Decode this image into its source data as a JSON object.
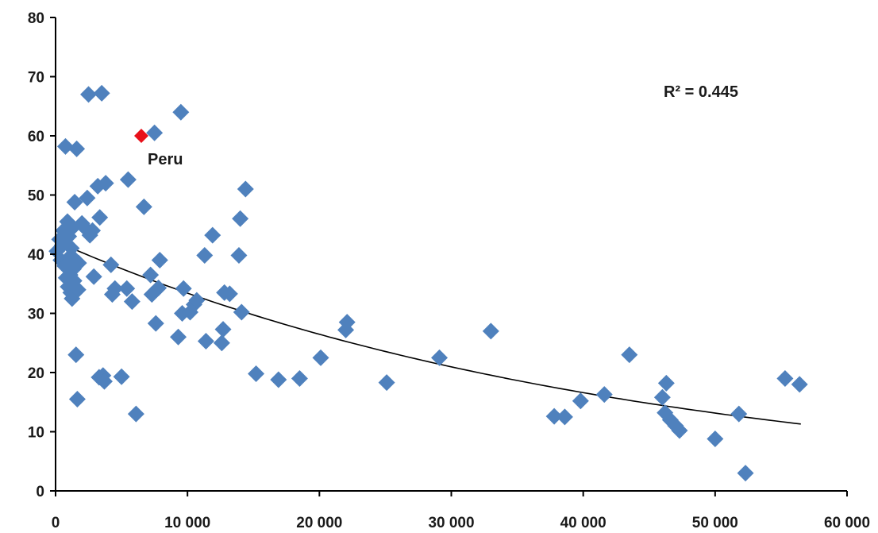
{
  "chart_data": {
    "type": "scatter",
    "title": "",
    "xlabel": "",
    "ylabel": "",
    "xlim": [
      0,
      60000
    ],
    "ylim": [
      0,
      80
    ],
    "x_ticks": [
      0,
      10000,
      20000,
      30000,
      40000,
      50000,
      60000
    ],
    "x_tick_labels": [
      "0",
      "10 000",
      "20 000",
      "30 000",
      "40 000",
      "50 000",
      "60 000"
    ],
    "y_ticks": [
      0,
      10,
      20,
      30,
      40,
      50,
      60,
      70,
      80
    ],
    "y_tick_labels": [
      "0",
      "10",
      "20",
      "30",
      "40",
      "50",
      "60",
      "70",
      "80"
    ],
    "grid": false,
    "legend": "none",
    "colors": {
      "points": "#4f81bd",
      "highlight": "#e8101a",
      "trendline": "#000000"
    },
    "r_squared_label": "R² = 0.445",
    "trendline": {
      "type": "exponential",
      "x": [
        0,
        56500
      ],
      "y": [
        42.2,
        11.3
      ]
    },
    "highlight": {
      "name": "Peru",
      "x": 6500,
      "y": 60,
      "label": "Peru"
    },
    "points": [
      {
        "x": 100,
        "y": 40.5
      },
      {
        "x": 300,
        "y": 42.5
      },
      {
        "x": 400,
        "y": 39
      },
      {
        "x": 500,
        "y": 41.5
      },
      {
        "x": 600,
        "y": 44
      },
      {
        "x": 700,
        "y": 38
      },
      {
        "x": 750,
        "y": 58.2
      },
      {
        "x": 800,
        "y": 36
      },
      {
        "x": 900,
        "y": 45.5
      },
      {
        "x": 950,
        "y": 34.5
      },
      {
        "x": 1000,
        "y": 43
      },
      {
        "x": 1050,
        "y": 39.5
      },
      {
        "x": 1100,
        "y": 36.5
      },
      {
        "x": 1150,
        "y": 33.5
      },
      {
        "x": 1200,
        "y": 41
      },
      {
        "x": 1250,
        "y": 32.5
      },
      {
        "x": 1300,
        "y": 44.5
      },
      {
        "x": 1350,
        "y": 37.5
      },
      {
        "x": 1400,
        "y": 35.5
      },
      {
        "x": 1450,
        "y": 48.8
      },
      {
        "x": 1500,
        "y": 39
      },
      {
        "x": 1550,
        "y": 23
      },
      {
        "x": 1600,
        "y": 57.8
      },
      {
        "x": 1650,
        "y": 15.5
      },
      {
        "x": 1700,
        "y": 34
      },
      {
        "x": 1750,
        "y": 38.5
      },
      {
        "x": 2000,
        "y": 45.2
      },
      {
        "x": 2200,
        "y": 44.5
      },
      {
        "x": 2400,
        "y": 49.5
      },
      {
        "x": 2500,
        "y": 67
      },
      {
        "x": 2600,
        "y": 43.2
      },
      {
        "x": 2800,
        "y": 44
      },
      {
        "x": 2900,
        "y": 36.2
      },
      {
        "x": 3200,
        "y": 51.5
      },
      {
        "x": 3300,
        "y": 19.2
      },
      {
        "x": 3350,
        "y": 46.2
      },
      {
        "x": 3500,
        "y": 67.2
      },
      {
        "x": 3600,
        "y": 19.5
      },
      {
        "x": 3700,
        "y": 18.5
      },
      {
        "x": 3800,
        "y": 52
      },
      {
        "x": 4200,
        "y": 38.2
      },
      {
        "x": 4300,
        "y": 33.2
      },
      {
        "x": 4500,
        "y": 34.2
      },
      {
        "x": 5000,
        "y": 19.3
      },
      {
        "x": 5400,
        "y": 34.2
      },
      {
        "x": 5500,
        "y": 52.6
      },
      {
        "x": 5800,
        "y": 32
      },
      {
        "x": 6100,
        "y": 13
      },
      {
        "x": 6700,
        "y": 48
      },
      {
        "x": 7200,
        "y": 36.5
      },
      {
        "x": 7300,
        "y": 33.2
      },
      {
        "x": 7500,
        "y": 60.5
      },
      {
        "x": 7600,
        "y": 28.3
      },
      {
        "x": 7800,
        "y": 34.3
      },
      {
        "x": 7900,
        "y": 39
      },
      {
        "x": 9300,
        "y": 26
      },
      {
        "x": 9500,
        "y": 64
      },
      {
        "x": 9600,
        "y": 30
      },
      {
        "x": 9700,
        "y": 34.2
      },
      {
        "x": 10200,
        "y": 30.2
      },
      {
        "x": 10500,
        "y": 31.5
      },
      {
        "x": 10700,
        "y": 32.2
      },
      {
        "x": 11300,
        "y": 39.8
      },
      {
        "x": 11400,
        "y": 25.3
      },
      {
        "x": 11900,
        "y": 43.2
      },
      {
        "x": 12600,
        "y": 25
      },
      {
        "x": 12700,
        "y": 27.3
      },
      {
        "x": 12800,
        "y": 33.5
      },
      {
        "x": 13200,
        "y": 33.3
      },
      {
        "x": 13900,
        "y": 39.8
      },
      {
        "x": 14000,
        "y": 46
      },
      {
        "x": 14100,
        "y": 30.2
      },
      {
        "x": 14400,
        "y": 51
      },
      {
        "x": 15200,
        "y": 19.8
      },
      {
        "x": 16900,
        "y": 18.8
      },
      {
        "x": 18500,
        "y": 19
      },
      {
        "x": 20100,
        "y": 22.5
      },
      {
        "x": 22000,
        "y": 27.2
      },
      {
        "x": 22100,
        "y": 28.5
      },
      {
        "x": 25100,
        "y": 18.3
      },
      {
        "x": 29100,
        "y": 22.5
      },
      {
        "x": 33000,
        "y": 27
      },
      {
        "x": 37800,
        "y": 12.6
      },
      {
        "x": 38600,
        "y": 12.5
      },
      {
        "x": 39800,
        "y": 15.2
      },
      {
        "x": 41600,
        "y": 16.3
      },
      {
        "x": 43500,
        "y": 23
      },
      {
        "x": 46000,
        "y": 15.8
      },
      {
        "x": 46200,
        "y": 13.2
      },
      {
        "x": 46300,
        "y": 18.2
      },
      {
        "x": 46600,
        "y": 12
      },
      {
        "x": 47000,
        "y": 11
      },
      {
        "x": 47300,
        "y": 10.2
      },
      {
        "x": 50000,
        "y": 8.8
      },
      {
        "x": 51800,
        "y": 13
      },
      {
        "x": 52300,
        "y": 3
      },
      {
        "x": 55300,
        "y": 19
      },
      {
        "x": 56400,
        "y": 18
      }
    ]
  }
}
